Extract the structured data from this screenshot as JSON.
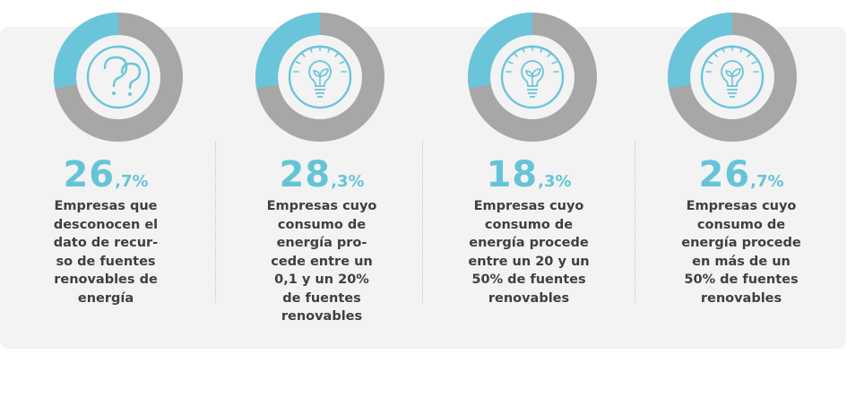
{
  "colors": {
    "accent": "#6ac5da",
    "ring": "#a7a7a7",
    "text": "#3f3f3f",
    "panel": "#f3f3f3"
  },
  "cards": [
    {
      "int": "26",
      "dec": ",7%",
      "description": "Empresas que\ndesconocen el\ndato de recur-\nso de fuentes\nrenovables de\nenergía",
      "icon": "question-marks-icon"
    },
    {
      "int": "28",
      "dec": ",3%",
      "description": "Empresas cuyo\nconsumo de\nenergía pro-\ncede entre un\n0,1 y un 20%\nde fuentes\nrenovables",
      "icon": "eco-lightbulb-icon"
    },
    {
      "int": "18",
      "dec": ",3%",
      "description": "Empresas cuyo\nconsumo de\nenergía procede\nentre un 20 y un\n50% de fuentes\nrenovables",
      "icon": "eco-lightbulb-icon"
    },
    {
      "int": "26",
      "dec": ",7%",
      "description": "Empresas cuyo\nconsumo de\nenergía procede\nen más de un\n50% de fuentes\nrenovables",
      "icon": "eco-lightbulb-icon"
    }
  ],
  "chart_data": {
    "type": "pie",
    "categories": [
      "Empresas que desconocen el dato de recurso de fuentes renovables de energía",
      "Empresas cuyo consumo de energía procede entre un 0,1 y un 20% de fuentes renovables",
      "Empresas cuyo consumo de energía procede entre un 20 y un 50% de fuentes renovables",
      "Empresas cuyo consumo de energía procede en más de un 50% de fuentes renovables"
    ],
    "values": [
      26.7,
      28.3,
      18.3,
      26.7
    ],
    "unit": "%",
    "donut": true,
    "note": "four separate donut rings; highlighted segment drawn at the same size in each ring"
  }
}
